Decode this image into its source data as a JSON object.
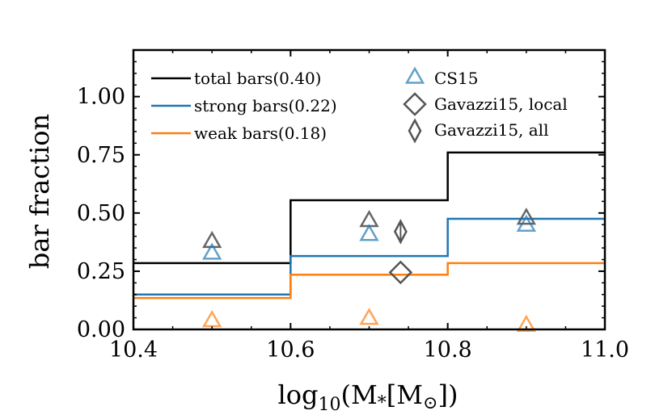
{
  "chart_data": {
    "type": "line",
    "title": "",
    "xlabel": "log10(M*[M⊙])",
    "ylabel": "bar fraction",
    "xlim": [
      10.4,
      11.0
    ],
    "ylim": [
      0.0,
      1.2
    ],
    "xticks": [
      10.4,
      10.6,
      10.8,
      11.0
    ],
    "xtick_labels": [
      "10.4",
      "10.6",
      "10.8",
      "11.0"
    ],
    "yticks": [
      0.0,
      0.25,
      0.5,
      0.75,
      1.0
    ],
    "ytick_labels": [
      "0.00",
      "0.25",
      "0.50",
      "0.75",
      "1.00"
    ],
    "bin_edges": [
      10.4,
      10.6,
      10.8,
      11.0
    ],
    "step_series": [
      {
        "name": "total bars(0.40)",
        "color": "#000000",
        "values": [
          0.285,
          0.555,
          0.76
        ]
      },
      {
        "name": "strong bars(0.22)",
        "color": "#1f77b4",
        "values": [
          0.15,
          0.315,
          0.475
        ]
      },
      {
        "name": "weak bars(0.18)",
        "color": "#ff7f0e",
        "values": [
          0.135,
          0.235,
          0.285
        ]
      }
    ],
    "cs15": {
      "name": "CS15",
      "x": [
        10.5,
        10.7,
        10.9
      ],
      "total": [
        0.38,
        0.47,
        0.48
      ],
      "strong": [
        0.33,
        0.41,
        0.45
      ],
      "weak": [
        0.04,
        0.05,
        0.02
      ]
    },
    "gavazzi_local": {
      "name": "Gavazzi15, local",
      "x": 10.74,
      "y": 0.245
    },
    "gavazzi_all": {
      "name": "Gavazzi15, all",
      "x": 10.74,
      "y": 0.42,
      "yerr": 0.05
    },
    "legend": {
      "placement": "top",
      "columns": 2
    },
    "grid": false,
    "colors": {
      "total": "#000000",
      "strong": "#1f77b4",
      "weak": "#ff7f0e",
      "total_marker": "#555555",
      "gavazzi": "#555555"
    }
  }
}
